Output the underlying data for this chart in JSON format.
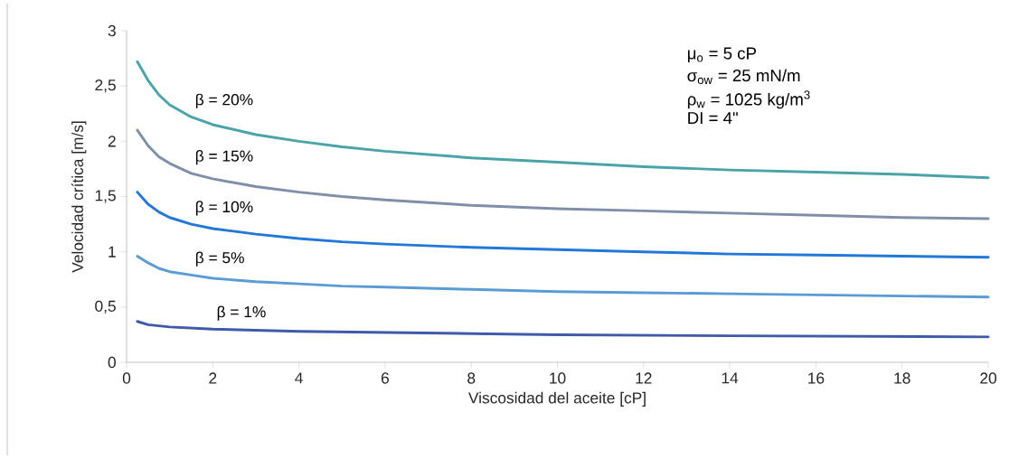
{
  "chart_data": {
    "type": "line",
    "xlabel": "Viscosidad del aceite [cP]",
    "ylabel": "Velocidad crítica [m/s]",
    "xlim": [
      0,
      20
    ],
    "xticks": [
      0,
      2,
      4,
      6,
      8,
      10,
      12,
      14,
      16,
      18,
      20
    ],
    "ylim": [
      0,
      3
    ],
    "yticks": [
      0,
      {
        "value": 0.5,
        "label": "0,5"
      },
      1,
      {
        "value": 1.5,
        "label": "1,5"
      },
      2,
      {
        "value": 2.5,
        "label": "2,5"
      },
      3
    ],
    "grid": false,
    "legend": false,
    "annotations": [
      "μ$_{o}$ = 5 cP",
      "σ$_{ow}$ = 25 mN/m",
      "ρ$_{w}$ = 1025 kg/m$^{3}$",
      "DI = 4\""
    ],
    "series": [
      {
        "name": "β = 20%",
        "color": "#4aa3a8",
        "x": [
          0.25,
          0.5,
          0.75,
          1,
          1.5,
          2,
          3,
          4,
          5,
          6,
          8,
          10,
          12,
          14,
          16,
          18,
          20
        ],
        "values": [
          2.72,
          2.55,
          2.42,
          2.33,
          2.22,
          2.15,
          2.06,
          2.0,
          1.95,
          1.91,
          1.85,
          1.81,
          1.77,
          1.74,
          1.72,
          1.7,
          1.67
        ]
      },
      {
        "name": "β = 15%",
        "color": "#7f8fa9",
        "x": [
          0.25,
          0.5,
          0.75,
          1,
          1.5,
          2,
          3,
          4,
          5,
          6,
          8,
          10,
          12,
          14,
          16,
          18,
          20
        ],
        "values": [
          2.1,
          1.96,
          1.86,
          1.8,
          1.71,
          1.66,
          1.59,
          1.54,
          1.5,
          1.47,
          1.42,
          1.39,
          1.37,
          1.35,
          1.33,
          1.31,
          1.3
        ]
      },
      {
        "name": "β = 10%",
        "color": "#2277d8",
        "x": [
          0.25,
          0.5,
          0.75,
          1,
          1.5,
          2,
          3,
          4,
          5,
          6,
          8,
          10,
          12,
          14,
          16,
          18,
          20
        ],
        "values": [
          1.54,
          1.43,
          1.36,
          1.31,
          1.25,
          1.21,
          1.16,
          1.12,
          1.09,
          1.07,
          1.04,
          1.02,
          1.0,
          0.98,
          0.97,
          0.96,
          0.95
        ]
      },
      {
        "name": "β = 5%",
        "color": "#5b9bd5",
        "x": [
          0.25,
          0.5,
          0.75,
          1,
          1.5,
          2,
          3,
          4,
          5,
          6,
          8,
          10,
          12,
          14,
          16,
          18,
          20
        ],
        "values": [
          0.96,
          0.9,
          0.85,
          0.82,
          0.79,
          0.76,
          0.73,
          0.71,
          0.69,
          0.68,
          0.66,
          0.64,
          0.63,
          0.62,
          0.61,
          0.6,
          0.59
        ]
      },
      {
        "name": "β = 1%",
        "color": "#3f5aa8",
        "x": [
          0.25,
          0.5,
          1,
          2,
          4,
          6,
          8,
          10,
          14,
          20
        ],
        "values": [
          0.37,
          0.34,
          0.32,
          0.3,
          0.28,
          0.27,
          0.26,
          0.25,
          0.24,
          0.23
        ]
      }
    ]
  }
}
